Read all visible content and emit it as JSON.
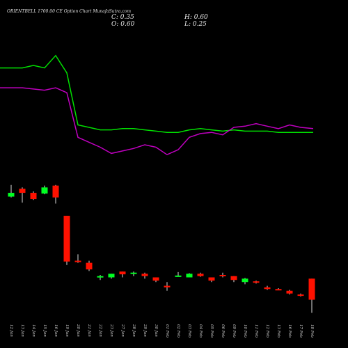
{
  "header": {
    "title": "ORIENTBELL 1700.00 CE Option Chart MunafaSutra.com",
    "close_label": "C: 0.35",
    "high_label": "H: 0.60",
    "open_label": "O: 0.60",
    "low_label": "L: 0.25"
  },
  "colors": {
    "background": "#000000",
    "line_upper": "#00e000",
    "line_lower": "#c000c0",
    "candle_up": "#00ff22",
    "candle_down": "#ff1100",
    "wick": "#dddddd",
    "text": "#e0e0e0"
  },
  "chart_data": {
    "type": "candlestick",
    "title": "ORIENTBELL 1700.00 CE Option Chart MunafaSutra.com",
    "dates": [
      "12 Jan",
      "13 Jan",
      "14 Jan",
      "15 Jan",
      "16 Jan",
      "19 Jan",
      "20 Jan",
      "21 Jan",
      "22 Jan",
      "23 Jan",
      "27 Jan",
      "28 Jan",
      "29 Jan",
      "30 Jan",
      "01 Feb",
      "02 Feb",
      "03 Feb",
      "04 Feb",
      "05 Feb",
      "06 Feb",
      "09 Feb",
      "10 Feb",
      "11 Feb",
      "12 Feb",
      "13 Feb",
      "16 Feb",
      "17 Feb",
      "18 Feb"
    ],
    "ohlc": [
      {
        "open": 4.9,
        "high": 6.6,
        "low": 4.8,
        "close": 5.4
      },
      {
        "open": 6.0,
        "high": 6.2,
        "low": 4.2,
        "close": 5.4
      },
      {
        "open": 5.4,
        "high": 5.6,
        "low": 4.5,
        "close": 4.6
      },
      {
        "open": 5.3,
        "high": 6.5,
        "low": 5.2,
        "close": 6.2
      },
      {
        "open": 6.5,
        "high": 6.6,
        "low": 4.1,
        "close": 4.8
      },
      {
        "open": 3.0,
        "high": 3.0,
        "low": 0.85,
        "close": 0.93
      },
      {
        "open": 0.95,
        "high": 1.12,
        "low": 0.9,
        "close": 0.92
      },
      {
        "open": 0.9,
        "high": 0.95,
        "low": 0.73,
        "close": 0.76
      },
      {
        "open": 0.62,
        "high": 0.66,
        "low": 0.58,
        "close": 0.64
      },
      {
        "open": 0.62,
        "high": 0.68,
        "low": 0.6,
        "close": 0.68
      },
      {
        "open": 0.72,
        "high": 0.72,
        "low": 0.62,
        "close": 0.67
      },
      {
        "open": 0.68,
        "high": 0.72,
        "low": 0.64,
        "close": 0.7
      },
      {
        "open": 0.68,
        "high": 0.7,
        "low": 0.6,
        "close": 0.64
      },
      {
        "open": 0.62,
        "high": 0.62,
        "low": 0.55,
        "close": 0.57
      },
      {
        "open": 0.5,
        "high": 0.55,
        "low": 0.44,
        "close": 0.48
      },
      {
        "open": 0.64,
        "high": 0.71,
        "low": 0.63,
        "close": 0.65
      },
      {
        "open": 0.62,
        "high": 0.69,
        "low": 0.62,
        "close": 0.68
      },
      {
        "open": 0.68,
        "high": 0.7,
        "low": 0.63,
        "close": 0.64
      },
      {
        "open": 0.62,
        "high": 0.62,
        "low": 0.55,
        "close": 0.57
      },
      {
        "open": 0.66,
        "high": 0.7,
        "low": 0.62,
        "close": 0.64
      },
      {
        "open": 0.64,
        "high": 0.64,
        "low": 0.55,
        "close": 0.58
      },
      {
        "open": 0.55,
        "high": 0.61,
        "low": 0.52,
        "close": 0.6
      },
      {
        "open": 0.56,
        "high": 0.57,
        "low": 0.53,
        "close": 0.54
      },
      {
        "open": 0.48,
        "high": 0.5,
        "low": 0.45,
        "close": 0.46
      },
      {
        "open": 0.46,
        "high": 0.47,
        "low": 0.45,
        "close": 0.45
      },
      {
        "open": 0.44,
        "high": 0.45,
        "low": 0.4,
        "close": 0.41
      },
      {
        "open": 0.4,
        "high": 0.41,
        "low": 0.38,
        "close": 0.39
      },
      {
        "open": 0.6,
        "high": 0.6,
        "low": 0.25,
        "close": 0.35
      }
    ],
    "upper_line": [
      1.0,
      1.0,
      1.01,
      1.0,
      1.05,
      0.98,
      0.77,
      0.76,
      0.75,
      0.75,
      0.755,
      0.755,
      0.75,
      0.745,
      0.74,
      0.74,
      0.75,
      0.755,
      0.75,
      0.745,
      0.75,
      0.745,
      0.745,
      0.745,
      0.74,
      0.74,
      0.74,
      0.74
    ],
    "lower_line": [
      0.92,
      0.92,
      0.915,
      0.91,
      0.92,
      0.9,
      0.72,
      0.7,
      0.68,
      0.655,
      0.665,
      0.675,
      0.69,
      0.68,
      0.65,
      0.67,
      0.72,
      0.735,
      0.74,
      0.73,
      0.76,
      0.765,
      0.775,
      0.765,
      0.755,
      0.77,
      0.76,
      0.755
    ],
    "price_axis_scale": "log",
    "candle_price_range": [
      0.2,
      8
    ],
    "lines_value_range": [
      0.6,
      1.1
    ],
    "grid": false,
    "legend": "none"
  }
}
